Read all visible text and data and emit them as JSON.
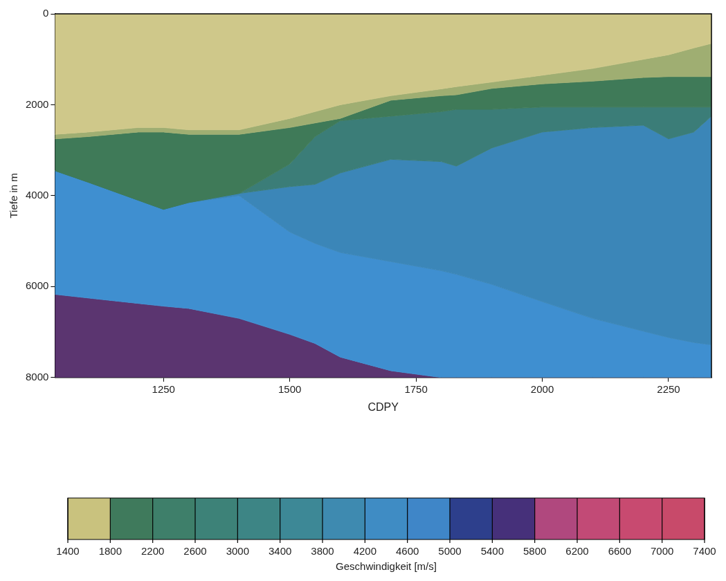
{
  "chart_data": {
    "type": "area",
    "stacked": true,
    "xlabel": "CDPY",
    "ylabel": "Tiefe in m",
    "clabel": "Geschwindigkeit [m/s]",
    "x": [
      1035,
      1100,
      1200,
      1250,
      1300,
      1400,
      1500,
      1550,
      1600,
      1700,
      1800,
      1830,
      1900,
      2000,
      2100,
      2200,
      2250,
      2300,
      2335
    ],
    "xlim": [
      1035,
      2335
    ],
    "xticks": [
      1250,
      1500,
      1750,
      2000,
      2250
    ],
    "ylim": [
      8000,
      0
    ],
    "yticks": [
      0,
      2000,
      4000,
      6000,
      8000
    ],
    "clim": [
      1400,
      7400
    ],
    "cticks": [
      1400,
      1800,
      2200,
      2600,
      3000,
      3400,
      3800,
      4200,
      4600,
      5000,
      5400,
      5800,
      6200,
      6600,
      7000,
      7400
    ],
    "grid": false,
    "legend": false,
    "series": [
      {
        "color": "#cfc88a",
        "values": [
          2650,
          2600,
          2500,
          2500,
          2550,
          2550,
          2300,
          2150,
          2000,
          1800,
          1650,
          1600,
          1500,
          1350,
          1200,
          1000,
          900,
          750,
          650
        ]
      },
      {
        "color": "#9fae72",
        "values": [
          100,
          100,
          100,
          100,
          100,
          100,
          200,
          250,
          300,
          100,
          150,
          180,
          140,
          190,
          280,
          400,
          480,
          630,
          730
        ]
      },
      {
        "color": "#3f7a58",
        "values": [
          700,
          1000,
          1500,
          1700,
          1500,
          1300,
          800,
          300,
          50,
          350,
          350,
          320,
          460,
          510,
          570,
          650,
          670,
          670,
          670
        ]
      },
      {
        "color": "#3b7d78",
        "values": [
          0,
          0,
          0,
          0,
          0,
          0,
          500,
          1050,
          1150,
          950,
          1100,
          1250,
          850,
          550,
          450,
          400,
          700,
          550,
          200
        ]
      },
      {
        "color": "#3b86b8",
        "values": [
          0,
          0,
          0,
          0,
          0,
          50,
          1000,
          1300,
          1750,
          2250,
          2400,
          2380,
          3000,
          3730,
          4200,
          4530,
          4370,
          4630,
          5030
        ]
      },
      {
        "color": "#3f8fd0",
        "values": [
          2720,
          2550,
          2270,
          2130,
          2330,
          2700,
          2250,
          2200,
          2300,
          2400,
          2350,
          2270,
          2050,
          1670,
          1300,
          1020,
          880,
          770,
          720
        ]
      },
      {
        "color": "#5b3570",
        "values": [
          1830,
          1750,
          1630,
          1570,
          1520,
          1300,
          950,
          750,
          450,
          150,
          0,
          0,
          0,
          0,
          0,
          0,
          0,
          0,
          0
        ]
      }
    ]
  }
}
